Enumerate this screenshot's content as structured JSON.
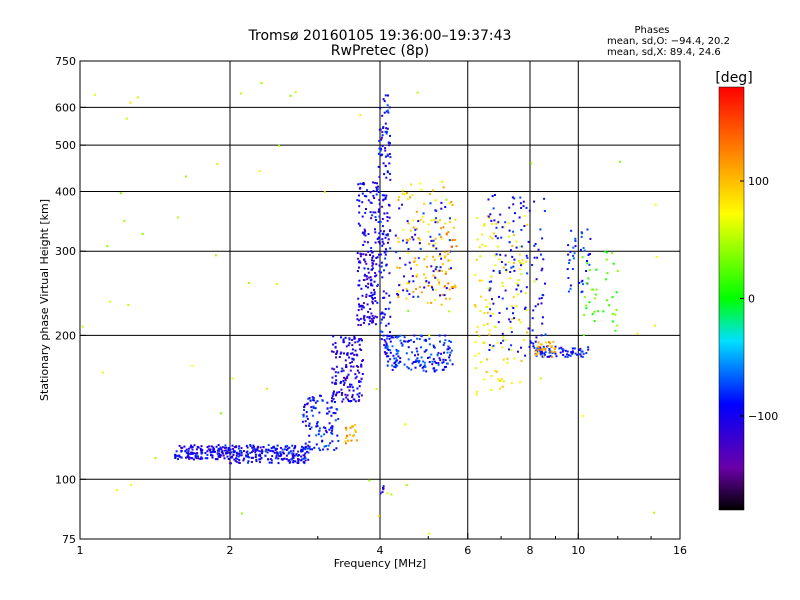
{
  "chart_data": {
    "type": "scatter",
    "title_line1": "Tromsø 20160105 19:36:00–19:37:43",
    "title_line2": "RwPretec (8p)",
    "stats": {
      "heading": "Phases",
      "line1": "mean, sd,O: −94.4, 20.2",
      "line2": "mean, sd,X:  89.4, 24.6"
    },
    "xlabel": "Frequency [MHz]",
    "ylabel": "Stationary phase Virtual Height [km]",
    "x_scale": "log",
    "y_scale": "log",
    "xlim": [
      1,
      16
    ],
    "ylim": [
      75,
      750
    ],
    "x_ticks": [
      1,
      2,
      4,
      6,
      8,
      10,
      16
    ],
    "x_tick_labels": [
      "1",
      "2",
      "4",
      "6",
      "8",
      "10",
      "16"
    ],
    "y_ticks": [
      75,
      100,
      200,
      300,
      400,
      500,
      600,
      750
    ],
    "y_tick_labels": [
      "75",
      "100",
      "200",
      "300",
      "400",
      "500",
      "600",
      "750"
    ],
    "grid": true,
    "colorbar": {
      "label": "[deg]",
      "range": [
        -180,
        180
      ],
      "ticks": [
        100,
        0,
        -100
      ],
      "tick_labels": [
        "100",
        "0",
        "−100"
      ]
    },
    "clusters": [
      {
        "f": [
          1.55,
          2.0
        ],
        "h": [
          110,
          118
        ],
        "phase": -100,
        "n": 150
      },
      {
        "f": [
          2.0,
          2.9
        ],
        "h": [
          108,
          118
        ],
        "phase": -95,
        "n": 220
      },
      {
        "f": [
          2.8,
          3.3
        ],
        "h": [
          115,
          150
        ],
        "phase": -90,
        "n": 110
      },
      {
        "f": [
          3.2,
          3.7
        ],
        "h": [
          145,
          200
        ],
        "phase": -105,
        "n": 150
      },
      {
        "f": [
          3.4,
          3.6
        ],
        "h": [
          118,
          130
        ],
        "phase": 110,
        "n": 18
      },
      {
        "f": [
          3.6,
          3.95
        ],
        "h": [
          210,
          300
        ],
        "phase": -110,
        "n": 120
      },
      {
        "f": [
          3.6,
          4.0
        ],
        "h": [
          300,
          420
        ],
        "phase": -100,
        "n": 70
      },
      {
        "f": [
          3.95,
          4.2
        ],
        "h": [
          180,
          560
        ],
        "phase": -95,
        "n": 150
      },
      {
        "f": [
          4.0,
          4.2
        ],
        "h": [
          560,
          640
        ],
        "phase": -90,
        "n": 12
      },
      {
        "f": [
          4.0,
          4.1
        ],
        "h": [
          93,
          97
        ],
        "phase": -100,
        "n": 6
      },
      {
        "f": [
          4.1,
          5.6
        ],
        "h": [
          168,
          200
        ],
        "phase": -85,
        "n": 160
      },
      {
        "f": [
          4.3,
          5.6
        ],
        "h": [
          230,
          420
        ],
        "phase": 95,
        "n": 110
      },
      {
        "f": [
          4.3,
          5.6
        ],
        "h": [
          240,
          380
        ],
        "phase": -95,
        "n": 70
      },
      {
        "f": [
          5.3,
          5.7
        ],
        "h": [
          250,
          360
        ],
        "phase": 110,
        "n": 25
      },
      {
        "f": [
          6.2,
          7.9
        ],
        "h": [
          150,
          360
        ],
        "phase": 80,
        "n": 120
      },
      {
        "f": [
          6.6,
          8.6
        ],
        "h": [
          180,
          400
        ],
        "phase": -95,
        "n": 140
      },
      {
        "f": [
          8.2,
          10.5
        ],
        "h": [
          180,
          190
        ],
        "phase": -90,
        "n": 70
      },
      {
        "f": [
          8.2,
          9.0
        ],
        "h": [
          180,
          195
        ],
        "phase": 110,
        "n": 30
      },
      {
        "f": [
          9.5,
          10.6
        ],
        "h": [
          240,
          340
        ],
        "phase": -85,
        "n": 40
      },
      {
        "f": [
          10.2,
          12.0
        ],
        "h": [
          200,
          300
        ],
        "phase": 20,
        "n": 40
      },
      {
        "f": [
          1.0,
          15.0
        ],
        "h": [
          76,
          700
        ],
        "phase": 60,
        "n": 60
      }
    ]
  }
}
